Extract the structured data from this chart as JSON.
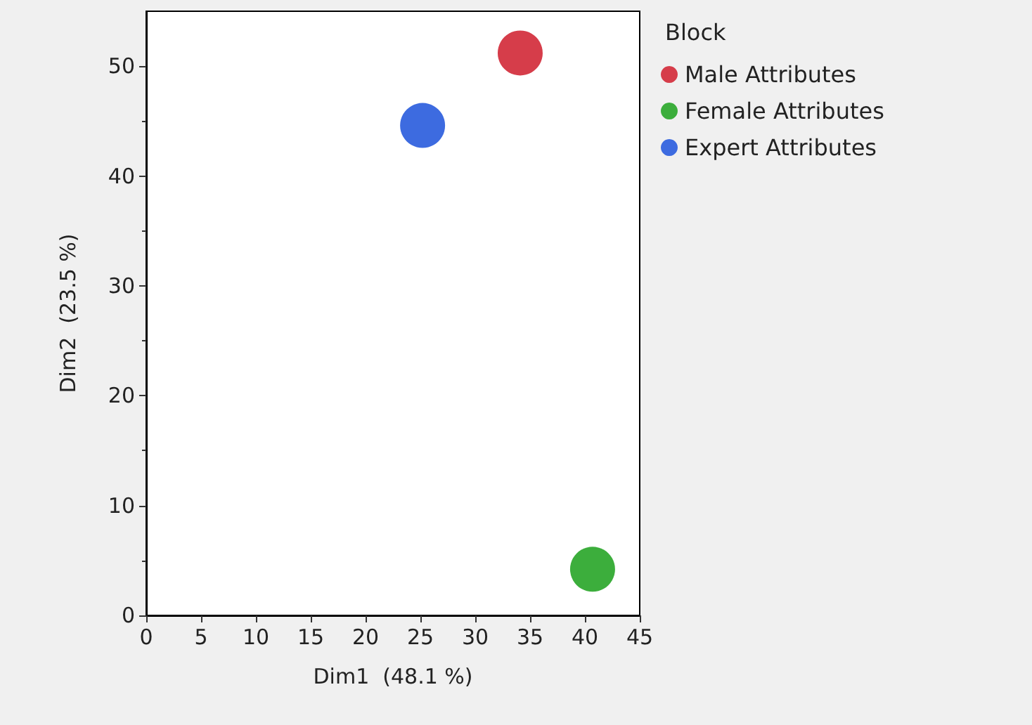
{
  "chart_data": {
    "type": "scatter",
    "xlabel": "Dim1  (48.1 %)",
    "ylabel": "Dim2  (23.5 %)",
    "legend_title": "Block",
    "series": [
      {
        "name": "Male Attributes",
        "color": "#d63d4a",
        "x": [
          34.1
        ],
        "values": [
          51.2
        ]
      },
      {
        "name": "Female Attributes",
        "color": "#3cae3c",
        "x": [
          40.7
        ],
        "values": [
          4.2
        ]
      },
      {
        "name": "Expert Attributes",
        "color": "#3d6be0",
        "x": [
          25.2
        ],
        "values": [
          44.6
        ]
      }
    ],
    "xlim": [
      0,
      45
    ],
    "xticks": [
      0,
      5,
      10,
      15,
      20,
      25,
      30,
      35,
      40,
      45
    ],
    "ylim": [
      0,
      55
    ],
    "yticks": [
      0,
      10,
      20,
      30,
      40,
      50
    ],
    "grid": false,
    "legend": "right",
    "marker": "circle"
  }
}
